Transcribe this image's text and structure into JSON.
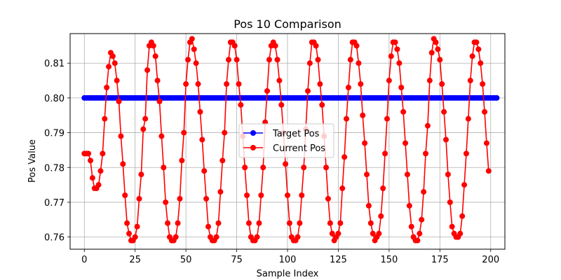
{
  "chart_data": {
    "type": "line",
    "title": "Pos 10 Comparison",
    "xlabel": "Sample Index",
    "ylabel": "Pos Value",
    "xlim": [
      -7,
      207
    ],
    "ylim": [
      0.7565,
      0.8185
    ],
    "xticks": [
      0,
      25,
      50,
      75,
      100,
      125,
      150,
      175,
      200
    ],
    "yticks": [
      0.76,
      0.77,
      0.78,
      0.79,
      0.8,
      0.81
    ],
    "ytick_labels": [
      "0.76",
      "0.77",
      "0.78",
      "0.79",
      "0.80",
      "0.81"
    ],
    "grid": true,
    "legend": {
      "placement": "center"
    },
    "series": [
      {
        "name": "Target Pos",
        "color": "#0000ff",
        "marker": "circle",
        "x_start": 0,
        "x_step": 1,
        "values": [
          0.8,
          0.8,
          0.8,
          0.8,
          0.8,
          0.8,
          0.8,
          0.8,
          0.8,
          0.8,
          0.8,
          0.8,
          0.8,
          0.8,
          0.8,
          0.8,
          0.8,
          0.8,
          0.8,
          0.8,
          0.8,
          0.8,
          0.8,
          0.8,
          0.8,
          0.8,
          0.8,
          0.8,
          0.8,
          0.8,
          0.8,
          0.8,
          0.8,
          0.8,
          0.8,
          0.8,
          0.8,
          0.8,
          0.8,
          0.8,
          0.8,
          0.8,
          0.8,
          0.8,
          0.8,
          0.8,
          0.8,
          0.8,
          0.8,
          0.8,
          0.8,
          0.8,
          0.8,
          0.8,
          0.8,
          0.8,
          0.8,
          0.8,
          0.8,
          0.8,
          0.8,
          0.8,
          0.8,
          0.8,
          0.8,
          0.8,
          0.8,
          0.8,
          0.8,
          0.8,
          0.8,
          0.8,
          0.8,
          0.8,
          0.8,
          0.8,
          0.8,
          0.8,
          0.8,
          0.8,
          0.8,
          0.8,
          0.8,
          0.8,
          0.8,
          0.8,
          0.8,
          0.8,
          0.8,
          0.8,
          0.8,
          0.8,
          0.8,
          0.8,
          0.8,
          0.8,
          0.8,
          0.8,
          0.8,
          0.8,
          0.8,
          0.8,
          0.8,
          0.8,
          0.8,
          0.8,
          0.8,
          0.8,
          0.8,
          0.8,
          0.8,
          0.8,
          0.8,
          0.8,
          0.8,
          0.8,
          0.8,
          0.8,
          0.8,
          0.8,
          0.8,
          0.8,
          0.8,
          0.8,
          0.8,
          0.8,
          0.8,
          0.8,
          0.8,
          0.8,
          0.8,
          0.8,
          0.8,
          0.8,
          0.8,
          0.8,
          0.8,
          0.8,
          0.8,
          0.8,
          0.8,
          0.8,
          0.8,
          0.8,
          0.8,
          0.8,
          0.8,
          0.8,
          0.8,
          0.8,
          0.8,
          0.8,
          0.8,
          0.8,
          0.8,
          0.8,
          0.8,
          0.8,
          0.8,
          0.8,
          0.8,
          0.8,
          0.8,
          0.8,
          0.8,
          0.8,
          0.8,
          0.8,
          0.8,
          0.8,
          0.8,
          0.8,
          0.8,
          0.8,
          0.8,
          0.8,
          0.8,
          0.8,
          0.8,
          0.8,
          0.8,
          0.8,
          0.8,
          0.8,
          0.8,
          0.8,
          0.8,
          0.8,
          0.8,
          0.8,
          0.8,
          0.8,
          0.8,
          0.8,
          0.8,
          0.8,
          0.8,
          0.8,
          0.8,
          0.8,
          0.8,
          0.8,
          0.8,
          0.8
        ]
      },
      {
        "name": "Current Pos",
        "color": "#ff0000",
        "marker": "circle",
        "x_start": 0,
        "x_step": 1,
        "values": [
          0.784,
          0.784,
          0.784,
          0.782,
          0.777,
          0.774,
          0.774,
          0.775,
          0.779,
          0.784,
          0.794,
          0.803,
          0.809,
          0.813,
          0.812,
          0.81,
          0.805,
          0.799,
          0.789,
          0.781,
          0.772,
          0.764,
          0.761,
          0.759,
          0.759,
          0.76,
          0.763,
          0.771,
          0.778,
          0.791,
          0.794,
          0.808,
          0.815,
          0.816,
          0.815,
          0.812,
          0.805,
          0.799,
          0.789,
          0.78,
          0.77,
          0.764,
          0.76,
          0.759,
          0.759,
          0.76,
          0.764,
          0.771,
          0.782,
          0.79,
          0.804,
          0.811,
          0.816,
          0.817,
          0.814,
          0.81,
          0.804,
          0.796,
          0.788,
          0.779,
          0.771,
          0.763,
          0.76,
          0.759,
          0.759,
          0.76,
          0.764,
          0.773,
          0.782,
          0.79,
          0.804,
          0.811,
          0.816,
          0.816,
          0.815,
          0.811,
          0.804,
          0.798,
          0.789,
          0.78,
          0.772,
          0.764,
          0.76,
          0.759,
          0.759,
          0.76,
          0.764,
          0.772,
          0.78,
          0.793,
          0.802,
          0.811,
          0.815,
          0.816,
          0.815,
          0.811,
          0.805,
          0.798,
          0.79,
          0.781,
          0.772,
          0.764,
          0.76,
          0.759,
          0.759,
          0.76,
          0.764,
          0.772,
          0.78,
          0.791,
          0.802,
          0.81,
          0.816,
          0.816,
          0.815,
          0.811,
          0.804,
          0.798,
          0.789,
          0.78,
          0.771,
          0.764,
          0.761,
          0.759,
          0.76,
          0.761,
          0.764,
          0.774,
          0.783,
          0.794,
          0.803,
          0.811,
          0.816,
          0.816,
          0.815,
          0.81,
          0.804,
          0.795,
          0.787,
          0.778,
          0.769,
          0.764,
          0.761,
          0.759,
          0.76,
          0.761,
          0.766,
          0.774,
          0.784,
          0.794,
          0.805,
          0.812,
          0.816,
          0.816,
          0.814,
          0.81,
          0.803,
          0.796,
          0.787,
          0.778,
          0.769,
          0.763,
          0.76,
          0.759,
          0.759,
          0.761,
          0.765,
          0.773,
          0.784,
          0.792,
          0.805,
          0.813,
          0.817,
          0.816,
          0.814,
          0.811,
          0.804,
          0.796,
          0.788,
          0.778,
          0.77,
          0.763,
          0.761,
          0.76,
          0.76,
          0.761,
          0.766,
          0.775,
          0.784,
          0.794,
          0.805,
          0.812,
          0.816,
          0.816,
          0.814,
          0.81,
          0.804,
          0.796,
          0.787,
          0.779
        ]
      }
    ]
  }
}
